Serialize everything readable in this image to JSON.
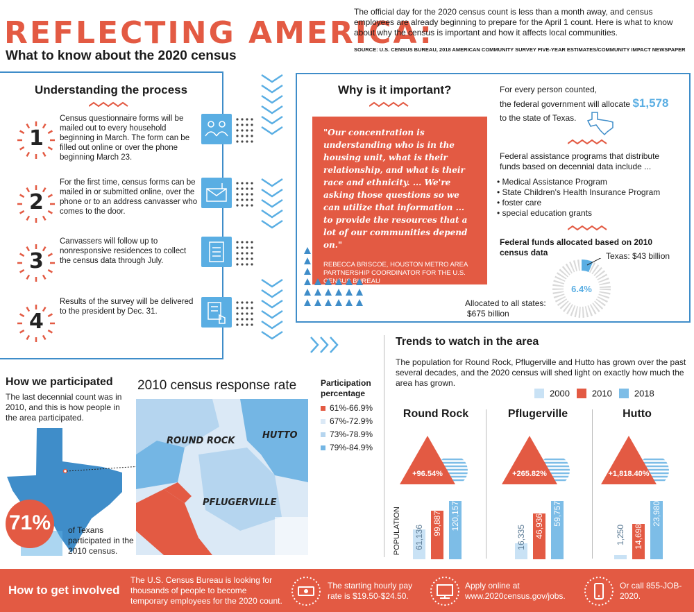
{
  "header": {
    "title": "REFLECTING AMERICA:",
    "subtitle": "What to know about the 2020 census",
    "intro": "The official day for the 2020 census count is less than a month away, and census employees are already beginning to prepare for the April 1 count. Here is what to know about why the census is important and how it affects local communities.",
    "source": "SOURCE: U.S. CENSUS BUREAU, 2018 AMERICAN COMMUNITY SURVEY FIVE-YEAR ESTIMATES/COMMUNITY IMPACT NEWSPAPER"
  },
  "process": {
    "heading": "Understanding the process",
    "steps": [
      {
        "num": "1",
        "text": "Census questionnaire forms will be mailed out to every household beginning in March. The form can be filled out online or over the phone beginning March 23.",
        "icon": "people-icon"
      },
      {
        "num": "2",
        "text": "For the first time, census forms can be mailed in or submitted online, over the phone or to an address canvasser who comes to the door.",
        "icon": "mailbox-icon"
      },
      {
        "num": "3",
        "text": "Canvassers will follow up to nonresponsive residences to collect the census data through July.",
        "icon": "clipboard-icon"
      },
      {
        "num": "4",
        "text": "Results of the survey will be delivered to the president by Dec. 31.",
        "icon": "document-hand-icon"
      }
    ]
  },
  "importance": {
    "heading": "Why is it important?",
    "quote": "\"Our concentration is understanding who is in the housing unit, what is their relationship, and what is their race and ethnicity. ... We're asking those questions so we can utilize that information ... to provide the resources that a lot of our communities depend on.\"",
    "attribution": "REBECCA BRISCOE, HOUSTON METRO AREA PARTNERSHIP COORDINATOR FOR THE U.S. CENSUS BUREAU",
    "per_person_line1": "For every person counted,",
    "per_person_line2": "the federal government will allocate",
    "per_person_amount": "$1,578",
    "per_person_line3": "to the state of Texas.",
    "programs_intro": "Federal assistance programs that distribute funds based on decennial data include ...",
    "programs": [
      "Medical Assistance Program",
      "State Children's Health Insurance Program",
      "foster care",
      "special education grants"
    ],
    "funds_heading": "Federal funds allocated based on 2010 census data",
    "texas_label": "Texas: $43 billion",
    "all_states_label": "Allocated to all states:",
    "all_states_value": "$675 billion",
    "percent": "6.4%",
    "percent_value": 6.4
  },
  "participation": {
    "heading": "How we participated",
    "text": "The last decennial count was in 2010, and this is how people in the area participated.",
    "percent": "71%",
    "percent_text": "of Texans participated in the 2010 census."
  },
  "response_map": {
    "heading": "2010 census response rate",
    "legend_title": "Participation percentage",
    "legend": [
      {
        "label": "61%-66.9%",
        "color": "#e35a43"
      },
      {
        "label": "67%-72.9%",
        "color": "#dbe9f6"
      },
      {
        "label": "73%-78.9%",
        "color": "#b5d5ef"
      },
      {
        "label": "79%-84.9%",
        "color": "#74b6e4"
      }
    ],
    "labels": [
      "ROUND ROCK",
      "HUTTO",
      "PFLUGERVILLE"
    ]
  },
  "trends": {
    "heading": "Trends to watch in the area",
    "text": "The population for Round Rock, Pflugerville and Hutto has grown over the past several decades, and the 2020 census will shed light on exactly how much the area has grown.",
    "axis_label": "POPULATION",
    "legend": [
      {
        "label": "2000",
        "color": "#c9e2f5"
      },
      {
        "label": "2010",
        "color": "#e35a43"
      },
      {
        "label": "2018",
        "color": "#7dbde7"
      }
    ]
  },
  "chart_data": {
    "type": "bar",
    "categories": [
      "Round Rock",
      "Pflugerville",
      "Hutto"
    ],
    "series": [
      {
        "name": "2000",
        "values": [
          61136,
          16335,
          1250
        ],
        "labels": [
          "61,136",
          "16,335",
          "1,250"
        ]
      },
      {
        "name": "2010",
        "values": [
          99887,
          46936,
          14698
        ],
        "labels": [
          "99,887",
          "46,936",
          "14,698"
        ]
      },
      {
        "name": "2018",
        "values": [
          120157,
          59757,
          23980
        ],
        "labels": [
          "120,157",
          "59,757",
          "23,980"
        ]
      }
    ],
    "growth": [
      "+96.54%",
      "+265.82%",
      "+1,818.40%"
    ],
    "ylabel": "POPULATION"
  },
  "footer": {
    "heading": "How to get involved",
    "text1": "The U.S. Census Bureau is looking for thousands of people to become temporary employees for the 2020 count.",
    "text2": "The starting hourly pay rate is $19.50-$24.50.",
    "text3": "Apply online at www.2020census.gov/jobs.",
    "text4": "Or call 855-JOB-2020."
  }
}
